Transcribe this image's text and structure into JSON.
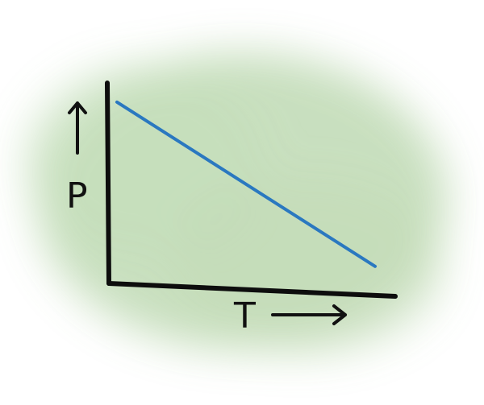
{
  "colors": {
    "background": "#ffffff",
    "wash": "#a9cd9b",
    "axis": "#0d0d0d",
    "line": "#2a78c0"
  },
  "chart_data": {
    "type": "line",
    "title": "",
    "xlabel": "T",
    "ylabel": "P",
    "grid": false,
    "legend": "none",
    "xlim": [
      0,
      1
    ],
    "ylim": [
      0,
      1
    ],
    "series": [
      {
        "x": [
          0.0,
          1.0
        ],
        "y": [
          0.93,
          0.08
        ]
      }
    ]
  }
}
